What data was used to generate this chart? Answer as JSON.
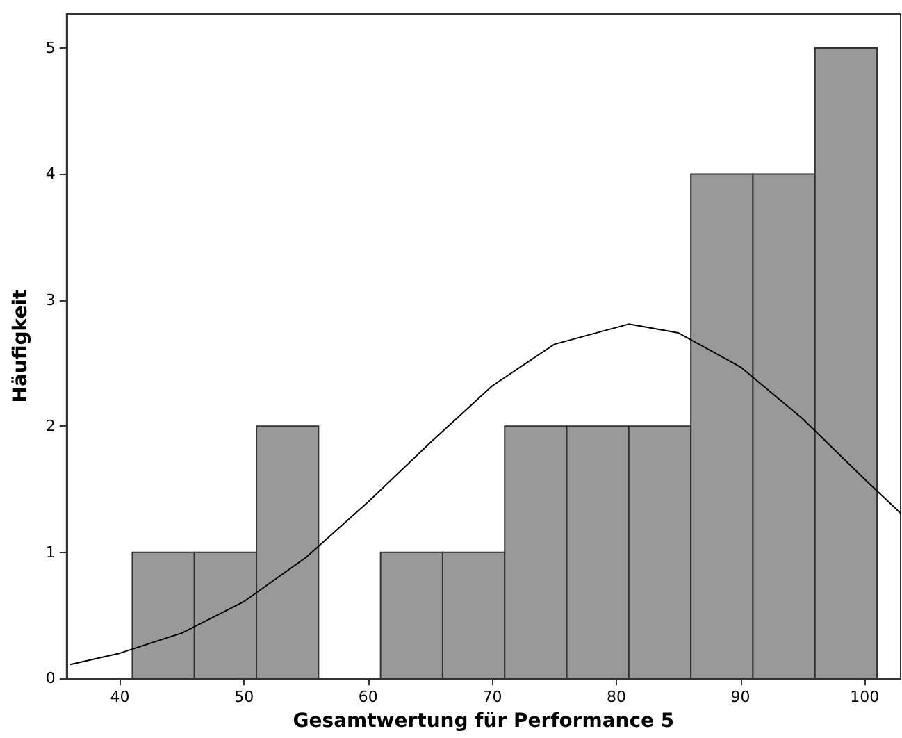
{
  "chart_data": {
    "type": "histogram",
    "xlabel": "Gesamtwertung für Performance 5",
    "ylabel": "Häufigkeit",
    "bins": [
      41,
      46,
      51,
      56,
      61,
      66,
      71,
      76,
      81,
      86,
      91,
      96,
      101
    ],
    "values": [
      1,
      1,
      2,
      0,
      1,
      1,
      2,
      2,
      2,
      4,
      4,
      5
    ],
    "color": "#999999",
    "series": [
      {
        "type": "line",
        "color": "#000000",
        "marker": "none",
        "x": [
          36,
          40,
          45,
          50,
          55,
          60,
          65,
          70,
          75,
          81,
          85,
          90,
          95,
          100,
          102.9
        ],
        "values": [
          0.11,
          0.2,
          0.36,
          0.61,
          0.96,
          1.4,
          1.87,
          2.32,
          2.65,
          2.81,
          2.74,
          2.47,
          2.06,
          1.58,
          1.31
        ]
      }
    ],
    "xlim": [
      35.7,
      102.9
    ],
    "xticks": [
      40,
      50,
      60,
      70,
      80,
      90,
      100
    ],
    "ylim": [
      0,
      5.27
    ],
    "yticks": [
      0,
      1,
      2,
      3,
      4,
      5
    ],
    "grid": false
  }
}
